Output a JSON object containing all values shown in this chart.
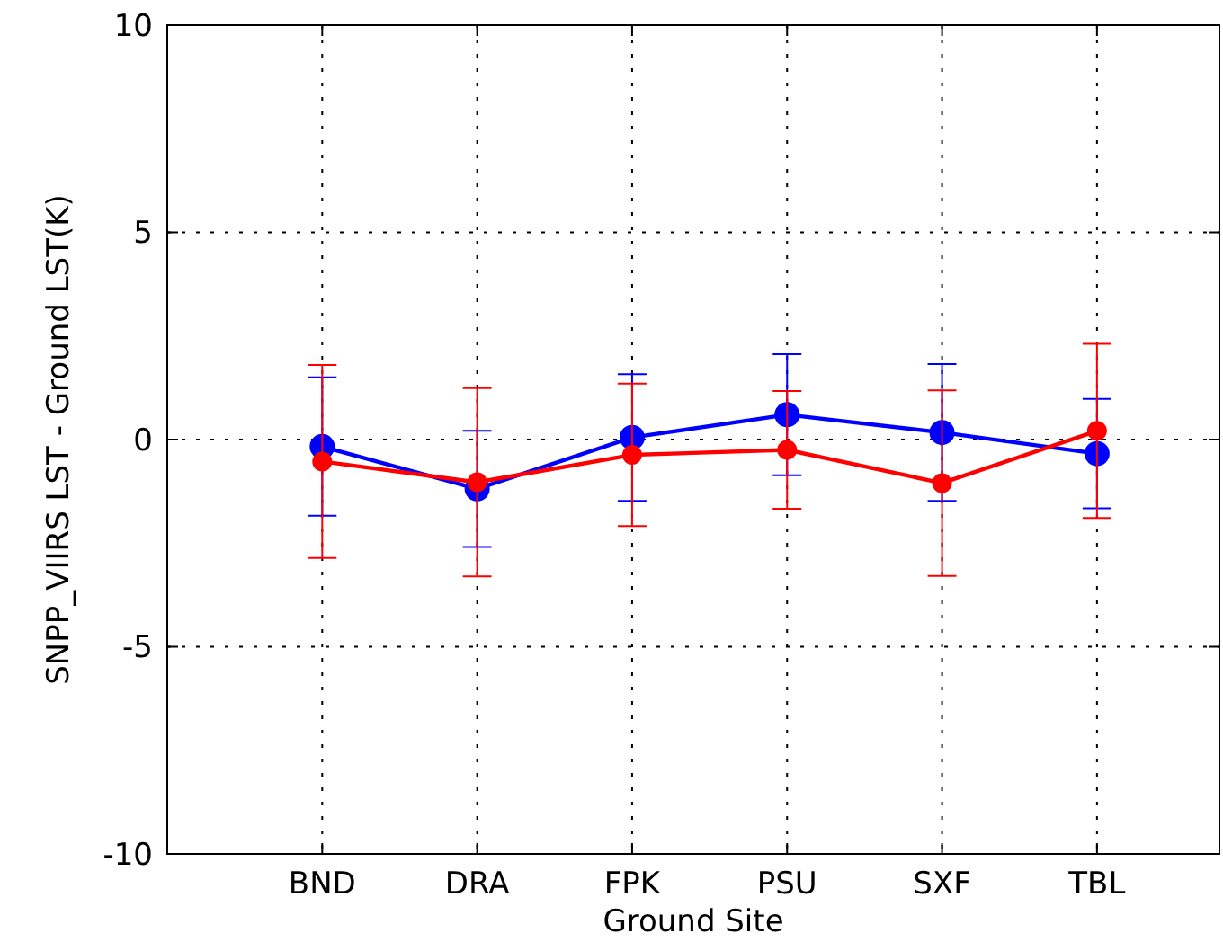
{
  "chart_data": {
    "type": "line",
    "xlabel": "Ground Site",
    "ylabel": "SNPP_VIIRS LST - Ground LST(K)",
    "categories": [
      "BND",
      "DRA",
      "FPK",
      "PSU",
      "SXF",
      "TBL"
    ],
    "series": [
      {
        "color": "#0000ff",
        "values": [
          -0.17,
          -1.19,
          0.05,
          0.6,
          0.17,
          -0.34
        ],
        "errors": [
          1.67,
          1.4,
          1.53,
          1.46,
          1.65,
          1.32
        ]
      },
      {
        "color": "#ff0000",
        "values": [
          -0.53,
          -1.03,
          -0.37,
          -0.25,
          -1.05,
          0.21
        ],
        "errors": [
          2.33,
          2.27,
          1.72,
          1.42,
          2.24,
          2.1
        ]
      }
    ],
    "ylim": [
      -10,
      10
    ],
    "yticks": [
      -10,
      -5,
      0,
      5,
      10
    ],
    "grid": true,
    "marker": "circle",
    "line_style": "solid"
  }
}
